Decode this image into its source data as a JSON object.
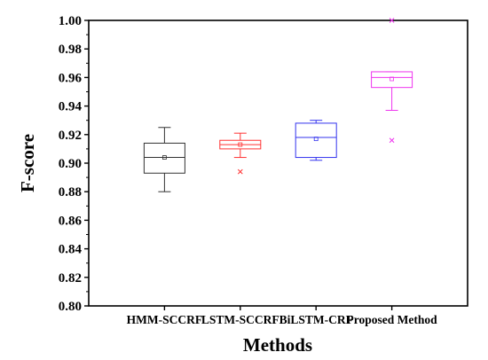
{
  "chart_data": {
    "type": "box",
    "xlabel": "Methods",
    "ylabel": "F-score",
    "ylim": [
      0.8,
      1.0
    ],
    "yticks": [
      "0.80",
      "0.82",
      "0.84",
      "0.86",
      "0.88",
      "0.90",
      "0.92",
      "0.94",
      "0.96",
      "0.98",
      "1.00"
    ],
    "categories": [
      "HMM-SCCRF",
      "LSTM-SCCRF",
      "BiLSTM-CRF",
      "Proposed Method"
    ],
    "series": [
      {
        "color": "#333333",
        "whisker_low": 0.88,
        "q1": 0.893,
        "median": 0.904,
        "mean": 0.904,
        "q3": 0.914,
        "whisker_high": 0.925,
        "outliers": []
      },
      {
        "color": "#ff3333",
        "whisker_low": 0.904,
        "q1": 0.91,
        "median": 0.913,
        "mean": 0.913,
        "q3": 0.916,
        "whisker_high": 0.921,
        "outliers": [
          0.894
        ]
      },
      {
        "color": "#3333ee",
        "whisker_low": 0.902,
        "q1": 0.904,
        "median": 0.918,
        "mean": 0.917,
        "q3": 0.928,
        "whisker_high": 0.93,
        "outliers": []
      },
      {
        "color": "#ee33ee",
        "whisker_low": 0.937,
        "q1": 0.953,
        "median": 0.96,
        "mean": 0.959,
        "q3": 0.964,
        "whisker_high": 0.964,
        "outliers": [
          0.916,
          1.0
        ]
      }
    ],
    "grid": false,
    "legend": "none"
  }
}
